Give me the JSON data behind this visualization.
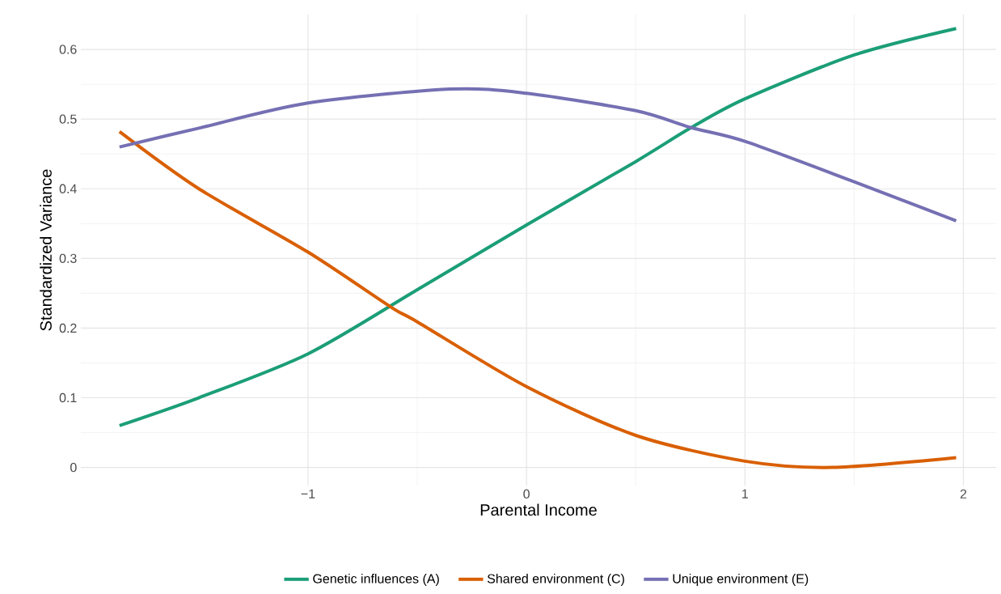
{
  "chart_data": {
    "type": "line",
    "xlabel": "Parental Income",
    "ylabel": "Standardized Variance",
    "xlim": [
      -2.04,
      2.15
    ],
    "ylim": [
      -0.026,
      0.65
    ],
    "xticks": [
      {
        "value": -1,
        "label": "−1"
      },
      0,
      1,
      2
    ],
    "yticks": [
      0,
      0.1,
      0.2,
      0.3,
      0.4,
      0.5,
      0.6
    ],
    "grid": true,
    "legend": "bottom",
    "line_style": "solid",
    "marker": "none",
    "series": [
      {
        "name": "Genetic influences (A)",
        "color": "#1b9e77",
        "x": [
          -1.863,
          -1.5,
          -1,
          -0.5,
          0,
          0.5,
          0.75,
          1,
          1.5,
          1.967
        ],
        "values": [
          0.06,
          0.1,
          0.163,
          0.255,
          0.348,
          0.439,
          0.487,
          0.529,
          0.592,
          0.63
        ]
      },
      {
        "name": "Shared environment (C)",
        "color": "#d95f02",
        "x": [
          -1.863,
          -1.5,
          -1,
          -0.62,
          -0.5,
          0,
          0.5,
          1,
          1.4,
          1.967
        ],
        "values": [
          0.482,
          0.4,
          0.309,
          0.23,
          0.209,
          0.116,
          0.046,
          0.009,
          0.0,
          0.014
        ]
      },
      {
        "name": "Unique environment (E)",
        "color": "#7570b3",
        "x": [
          -1.863,
          -1.5,
          -1,
          -0.35,
          0,
          0.5,
          0.75,
          1,
          1.5,
          1.967
        ],
        "values": [
          0.46,
          0.487,
          0.523,
          0.543,
          0.537,
          0.512,
          0.488,
          0.468,
          0.41,
          0.354
        ]
      }
    ]
  }
}
